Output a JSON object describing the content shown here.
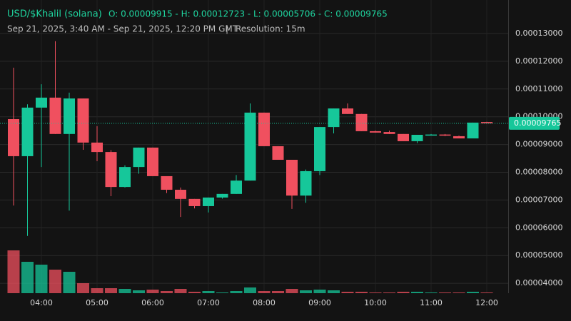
{
  "chart_data": {
    "type": "candlestick",
    "title": "USD/$Khalil (solana)",
    "ohlc_summary": "O: 0.00009915 - H: 0.00012723 - L: 0.00005706 - C: 0.00009765",
    "date_range": "Sep 21, 2025, 3:40 AM - Sep 21, 2025, 12:20 PM GMT",
    "separator": "|",
    "resolution": "Resolution: 15m",
    "categories": [
      null,
      null,
      "04:00",
      null,
      null,
      null,
      "05:00",
      null,
      null,
      null,
      "06:00",
      null,
      null,
      null,
      "07:00",
      null,
      null,
      null,
      "08:00",
      null,
      null,
      null,
      "09:00",
      null,
      null,
      null,
      "10:00",
      null,
      null,
      null,
      "11:00",
      null,
      null,
      null,
      "12:00"
    ],
    "open": [
      9.915e-05,
      8.58e-05,
      0.0001033,
      0.0001069,
      9.38e-05,
      0.0001066,
      9.07e-05,
      8.73e-05,
      7.47e-05,
      8.19e-05,
      8.89e-05,
      7.86e-05,
      7.37e-05,
      7.04e-05,
      6.78e-05,
      7.09e-05,
      7.22e-05,
      7.7e-05,
      0.0001015,
      8.94e-05,
      8.45e-05,
      7.16e-05,
      8.04e-05,
      9.63e-05,
      0.000103,
      0.000101,
      9.48e-05,
      9.45e-05,
      9.38e-05,
      9.12e-05,
      9.35e-05,
      9.36e-05,
      9.3e-05,
      9.22e-05,
      9.81e-05
    ],
    "high": [
      0.0001177,
      0.0001045,
      0.0001117,
      0.00012723,
      0.0001087,
      0.0001066,
      9.66e-05,
      8.8e-05,
      8.25e-05,
      8.89e-05,
      8.89e-05,
      7.86e-05,
      7.45e-05,
      7.04e-05,
      7.09e-05,
      7.22e-05,
      7.9e-05,
      0.0001048,
      0.0001015,
      8.94e-05,
      8.45e-05,
      8.1e-05,
      9.63e-05,
      0.000103,
      0.0001048,
      0.000101,
      9.5e-05,
      9.5e-05,
      9.38e-05,
      9.35e-05,
      9.38e-05,
      9.38e-05,
      9.32e-05,
      9.79e-05,
      9.82e-05
    ],
    "low": [
      6.8e-05,
      5.706e-05,
      8.19e-05,
      9.38e-05,
      6.62e-05,
      8.81e-05,
      8.4e-05,
      7.14e-05,
      7.45e-05,
      7.95e-05,
      7.86e-05,
      7.25e-05,
      6.39e-05,
      6.7e-05,
      6.55e-05,
      7.05e-05,
      7.22e-05,
      7.7e-05,
      8.94e-05,
      8.45e-05,
      6.68e-05,
      6.9e-05,
      7.9e-05,
      9.4e-05,
      0.000101,
      9.48e-05,
      9.43e-05,
      9.38e-05,
      9.12e-05,
      9.05e-05,
      9.33e-05,
      9.3e-05,
      9.22e-05,
      9.22e-05,
      9.765e-05
    ],
    "close": [
      8.58e-05,
      0.0001033,
      0.0001069,
      9.38e-05,
      0.0001066,
      9.07e-05,
      8.73e-05,
      7.47e-05,
      8.19e-05,
      8.89e-05,
      7.86e-05,
      7.37e-05,
      7.04e-05,
      6.78e-05,
      7.09e-05,
      7.22e-05,
      7.7e-05,
      0.0001015,
      8.94e-05,
      8.45e-05,
      7.16e-05,
      8.04e-05,
      9.63e-05,
      0.000103,
      0.000101,
      9.48e-05,
      9.43e-05,
      9.38e-05,
      9.12e-05,
      9.35e-05,
      9.36e-05,
      9.32e-05,
      9.22e-05,
      9.79e-05,
      9.765e-05
    ],
    "volume": [
      60,
      44,
      40,
      33,
      30,
      14,
      7,
      7,
      6,
      4,
      5,
      3,
      6,
      2,
      3,
      1,
      3,
      8,
      3,
      3,
      6,
      4,
      5,
      4,
      2,
      2,
      1,
      1,
      2,
      2,
      1,
      1,
      1,
      2,
      1
    ],
    "up_color": "#16c79a",
    "down_color": "#f0505f",
    "ylim": [
      3.643e-05,
      0.00014208
    ],
    "yticks": [
      {
        "value": 4e-05,
        "label": "0.00004000"
      },
      {
        "value": 5e-05,
        "label": "0.00005000"
      },
      {
        "value": 6e-05,
        "label": "0.00006000"
      },
      {
        "value": 7e-05,
        "label": "0.00007000"
      },
      {
        "value": 8e-05,
        "label": "0.00008000"
      },
      {
        "value": 9e-05,
        "label": "0.00009000"
      },
      {
        "value": 0.0001,
        "label": "0.00010000"
      },
      {
        "value": 0.00011,
        "label": "0.00011000"
      },
      {
        "value": 0.00012,
        "label": "0.00012000"
      },
      {
        "value": 0.00013,
        "label": "0.00013000"
      }
    ],
    "last_price": {
      "value": 9.765e-05,
      "label": "0.00009765"
    },
    "grid": true
  }
}
